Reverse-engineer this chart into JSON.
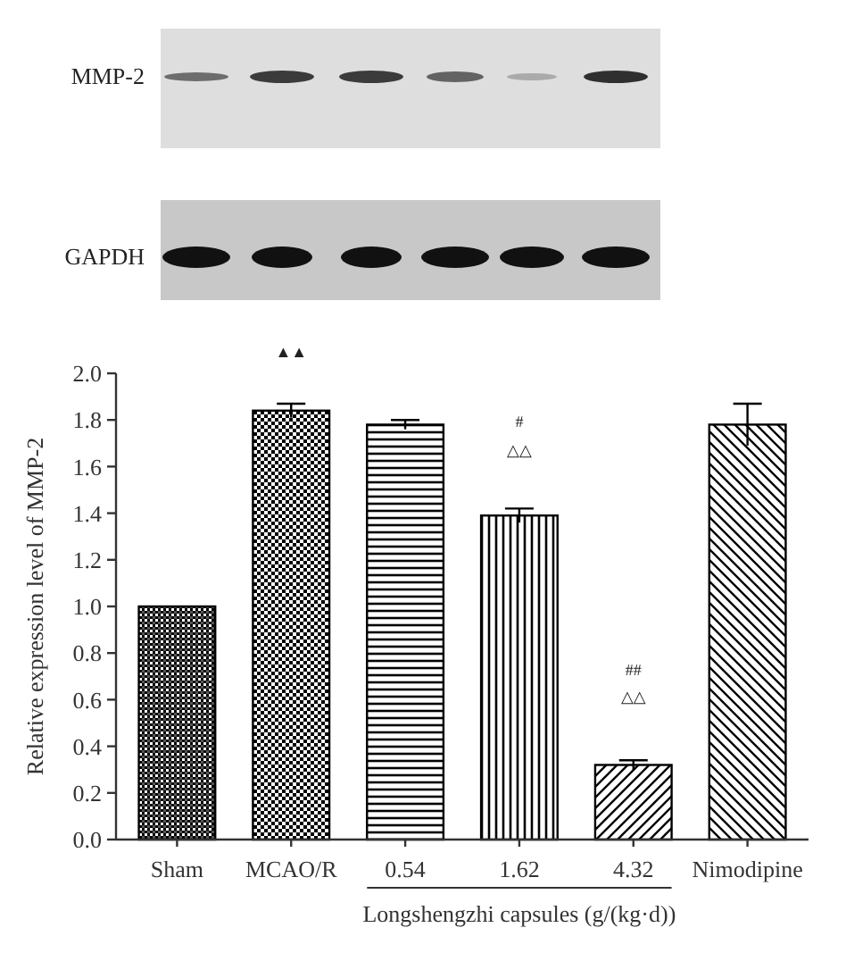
{
  "chart_data": {
    "type": "bar",
    "categories": [
      "Sham",
      "MCAO/R",
      "0.54",
      "1.62",
      "4.32",
      "Nimodipine"
    ],
    "values": [
      1.0,
      1.84,
      1.78,
      1.39,
      0.32,
      1.78
    ],
    "errors": [
      null,
      0.03,
      0.02,
      0.03,
      0.02,
      0.09
    ],
    "color": "#000000",
    "ylabel": "Relative expression level of MMP-2",
    "xlabel": "Longshengzhi capsules (g/(kg·d))",
    "ylim": [
      0,
      2.0
    ],
    "yticks": [
      {
        "value": 0,
        "label": "0.0"
      },
      0.2,
      0.4,
      0.6,
      0.8,
      {
        "value": 1,
        "label": "1.0"
      },
      1.2,
      1.4,
      1.6,
      1.8,
      {
        "value": 2,
        "label": "2.0"
      }
    ],
    "annotations": [
      "MMP-2",
      "GAPDH",
      "▲▲",
      "#",
      "△△",
      "##",
      "△△"
    ]
  }
}
